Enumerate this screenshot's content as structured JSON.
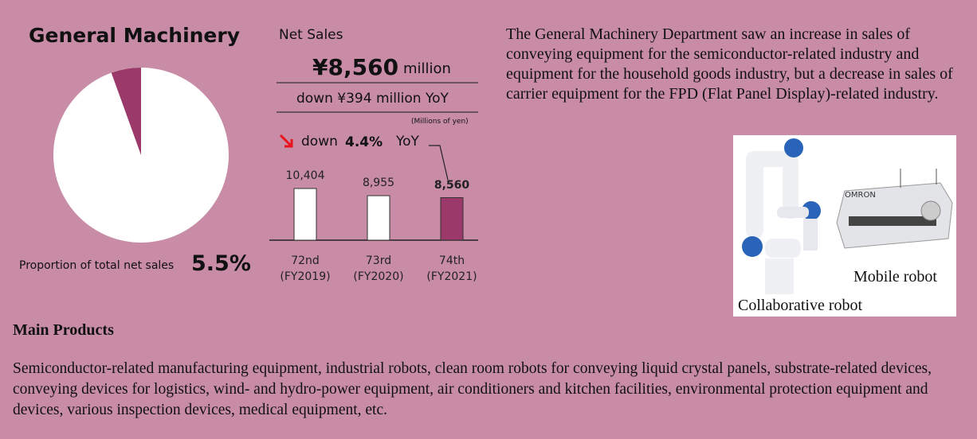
{
  "header": {
    "title": "General Machinery"
  },
  "chart_data": [
    {
      "type": "pie",
      "title": "Proportion of total net sales",
      "values": [
        5.5
      ],
      "value_labels": [
        "5.5%"
      ],
      "colors": [
        "#9b3a6a"
      ]
    },
    {
      "type": "bar",
      "title": "Net Sales",
      "unit_note": "(Millions of yen)",
      "categories": [
        "72nd (FY2019)",
        "73rd (FY2020)",
        "74th (FY2021)"
      ],
      "values": [
        10404,
        8955,
        8560
      ],
      "value_labels": [
        "10,404",
        "8,955",
        "8,560"
      ],
      "colors": [
        "#ffffff",
        "#ffffff",
        "#9b3a6a"
      ]
    }
  ],
  "summary": {
    "amount": "¥8,560",
    "unit": "million",
    "change": "down ¥394 million YoY",
    "trend_word": "down",
    "trend_percent": "4.4%",
    "trend_suffix": "YoY"
  },
  "description": "The General Machinery Department saw an increase in sales of conveying equipment for the semiconductor-related industry and equipment for the household goods industry, but a decrease in sales of carrier equipment for the FPD (Flat Panel Display)-related industry.",
  "photo": {
    "labels": [
      "Mobile robot",
      "Collaborative robot"
    ]
  },
  "main_products": {
    "heading": "Main Products",
    "text": "Semiconductor-related manufacturing equipment, industrial robots, clean room robots for conveying liquid crystal panels, substrate-related devices, conveying devices for logistics, wind- and hydro-power equipment, air conditioners and kitchen facilities, environmental protection equipment and devices, various inspection devices, medical equipment, etc."
  }
}
